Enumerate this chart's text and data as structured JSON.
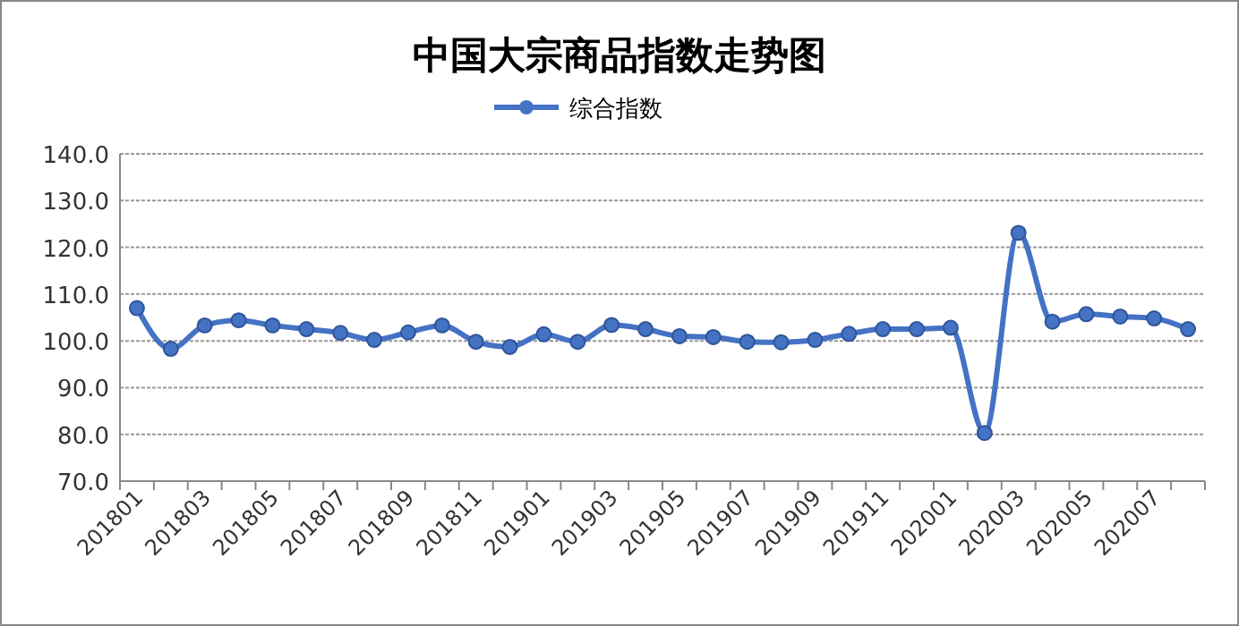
{
  "chart_data": {
    "type": "line",
    "title": "中国大宗商品指数走势图",
    "categories": [
      "201801",
      null,
      "201803",
      null,
      "201805",
      null,
      "201807",
      null,
      "201809",
      null,
      "201811",
      null,
      "201901",
      null,
      "201903",
      null,
      "201905",
      null,
      "201907",
      null,
      "201909",
      null,
      "201911",
      null,
      "202001",
      null,
      "202003",
      null,
      "202005",
      null,
      "202007",
      null
    ],
    "series": [
      {
        "name": "综合指数",
        "color": "#4472c4",
        "values": [
          107.0,
          98.3,
          103.3,
          104.4,
          103.3,
          102.5,
          101.7,
          100.2,
          101.8,
          103.3,
          99.8,
          98.7,
          101.4,
          99.8,
          103.4,
          102.5,
          101.0,
          100.8,
          99.8,
          99.7,
          100.2,
          101.5,
          102.5,
          102.5,
          102.8,
          80.3,
          123.1,
          104.1,
          105.7,
          105.2,
          104.8,
          102.5
        ]
      }
    ],
    "ylim": [
      70,
      140
    ],
    "yticks": [
      {
        "value": 70,
        "label": "70.0"
      },
      {
        "value": 80,
        "label": "80.0"
      },
      {
        "value": 90,
        "label": "90.0"
      },
      {
        "value": 100,
        "label": "100.0"
      },
      {
        "value": 110,
        "label": "110.0"
      },
      {
        "value": 120,
        "label": "120.0"
      },
      {
        "value": 130,
        "label": "130.0"
      },
      {
        "value": 140,
        "label": "140.0"
      }
    ],
    "grid": "y",
    "legend": "top",
    "marker": "circle",
    "line_style": "solid"
  }
}
